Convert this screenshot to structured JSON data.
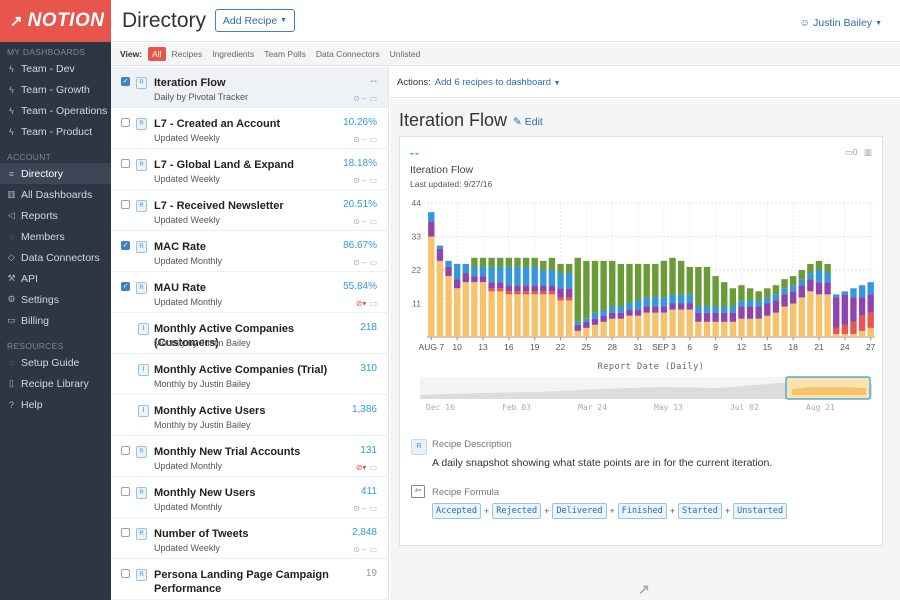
{
  "sidebar": {
    "logo_text": "NOTION",
    "my_dashboards_label": "MY DASHBOARDS",
    "dashboards": [
      {
        "label": "Team - Dev",
        "icon": "bolt-icon"
      },
      {
        "label": "Team - Growth",
        "icon": "bolt-icon"
      },
      {
        "label": "Team - Operations",
        "icon": "bolt-icon"
      },
      {
        "label": "Team - Product",
        "icon": "bolt-icon"
      }
    ],
    "account_label": "ACCOUNT",
    "account_items": [
      {
        "label": "Directory",
        "icon": "list-icon",
        "active": true
      },
      {
        "label": "All Dashboards",
        "icon": "bar-chart-icon"
      },
      {
        "label": "Reports",
        "icon": "megaphone-icon"
      },
      {
        "label": "Members",
        "icon": "chat-icon"
      },
      {
        "label": "Data Connectors",
        "icon": "tag-icon"
      },
      {
        "label": "API",
        "icon": "wrench-icon"
      },
      {
        "label": "Settings",
        "icon": "gear-icon"
      },
      {
        "label": "Billing",
        "icon": "card-icon"
      }
    ],
    "resources_label": "RESOURCES",
    "resource_items": [
      {
        "label": "Setup Guide",
        "icon": "chat-icon"
      },
      {
        "label": "Recipe Library",
        "icon": "book-icon"
      },
      {
        "label": "Help",
        "icon": "help-icon"
      }
    ]
  },
  "header": {
    "title": "Directory",
    "add_recipe_label": "Add Recipe",
    "user_name": "Justin Bailey"
  },
  "viewbar": {
    "label": "View:",
    "filters": [
      "All",
      "Recipes",
      "Ingredients",
      "Team Polls",
      "Data Connectors",
      "Unlisted"
    ],
    "active_filter": "All"
  },
  "recipes": [
    {
      "name": "Iteration Flow",
      "sub": "Daily by Pivotal Tracker",
      "value": "--",
      "checked": true,
      "selected": true,
      "type": "R",
      "has_checkbox": true,
      "alert": false
    },
    {
      "name": "L7 - Created an Account",
      "sub": "Updated Weekly",
      "value": "10.26%",
      "checked": false,
      "type": "R",
      "has_checkbox": true,
      "alert": false
    },
    {
      "name": "L7 - Global Land & Expand",
      "sub": "Updated Weekly",
      "value": "18.18%",
      "checked": false,
      "type": "R",
      "has_checkbox": true,
      "alert": false
    },
    {
      "name": "L7 - Received Newsletter",
      "sub": "Updated Weekly",
      "value": "20.51%",
      "checked": false,
      "type": "R",
      "has_checkbox": true,
      "alert": false
    },
    {
      "name": "MAC Rate",
      "sub": "Updated Monthly",
      "value": "86.67%",
      "checked": true,
      "type": "R",
      "has_checkbox": true,
      "alert": false
    },
    {
      "name": "MAU Rate",
      "sub": "Updated Monthly",
      "value": "55.84%",
      "checked": true,
      "type": "R",
      "has_checkbox": true,
      "alert": true
    },
    {
      "name": "Monthly Active Companies (Customers)",
      "sub": "Monthly by Justin Bailey",
      "value": "218",
      "checked": false,
      "type": "I",
      "has_checkbox": false,
      "alert": false
    },
    {
      "name": "Monthly Active Companies (Trial)",
      "sub": "Monthly by Justin Bailey",
      "value": "310",
      "checked": false,
      "type": "I",
      "has_checkbox": false,
      "alert": false
    },
    {
      "name": "Monthly Active Users",
      "sub": "Monthly by Justin Bailey",
      "value": "1,386",
      "checked": false,
      "type": "I",
      "has_checkbox": false,
      "alert": false
    },
    {
      "name": "Monthly New Trial Accounts",
      "sub": "Updated Monthly",
      "value": "131",
      "checked": false,
      "type": "R",
      "has_checkbox": true,
      "alert": true
    },
    {
      "name": "Monthly New Users",
      "sub": "Updated Monthly",
      "value": "411",
      "checked": false,
      "type": "R",
      "has_checkbox": true,
      "alert": false
    },
    {
      "name": "Number of Tweets",
      "sub": "Updated Weekly",
      "value": "2,848",
      "checked": false,
      "type": "R",
      "has_checkbox": true,
      "alert": false
    },
    {
      "name": "Persona Landing Page Campaign Performance",
      "sub": "",
      "value": "19",
      "checked": false,
      "type": "R",
      "has_checkbox": true,
      "alert": false,
      "grey_value": true
    }
  ],
  "actions": {
    "label": "Actions:",
    "link": "Add 6 recipes to dashboard"
  },
  "detail": {
    "title": "Iteration Flow",
    "edit_label": "Edit",
    "card": {
      "value": "--",
      "comment_count": "0",
      "title": "Iteration Flow",
      "last_updated": "Last updated: 9/27/16"
    },
    "description_label": "Recipe Description",
    "description": "A daily snapshot showing what state points are in for the current iteration.",
    "formula_label": "Recipe Formula",
    "formula_tokens": [
      "Accepted",
      "Rejected",
      "Delivered",
      "Finished",
      "Started",
      "Unstarted"
    ]
  },
  "colors": {
    "brand": "#e8554c",
    "sidebar_bg": "#2d3644",
    "link": "#2b6cb0",
    "value": "#2a9fd6",
    "series_accepted": "#f6c26b",
    "series_rejected": "#e8554c",
    "series_delivered": "#8e44ad",
    "series_finished": "#3498db",
    "series_started": "#6b9b37",
    "series_unstarted": "#e8e8e8"
  },
  "chart_data": {
    "type": "bar",
    "stacked": true,
    "xlabel": "Report Date (Daily)",
    "ylabel": "",
    "ylim": [
      0,
      44
    ],
    "y_ticks": [
      0,
      11,
      22,
      33,
      44
    ],
    "x_tick_labels": [
      "AUG 7",
      "10",
      "13",
      "16",
      "19",
      "22",
      "25",
      "28",
      "31",
      "SEP 3",
      "6",
      "9",
      "12",
      "15",
      "18",
      "21",
      "24",
      "27"
    ],
    "x_tick_days": [
      7,
      10,
      13,
      16,
      19,
      22,
      25,
      28,
      31,
      34,
      37,
      40,
      43,
      46,
      49,
      52,
      55,
      58
    ],
    "first_day": 7,
    "categories_count": 52,
    "series": [
      {
        "name": "Accepted",
        "color": "#f6c26b",
        "values": [
          33,
          25,
          20,
          16,
          18,
          18,
          18,
          15,
          15,
          14,
          14,
          14,
          14,
          14,
          14,
          12,
          12,
          2,
          3,
          4,
          5,
          6,
          6,
          7,
          7,
          8,
          8,
          8,
          9,
          9,
          9,
          5,
          5,
          5,
          5,
          5,
          6,
          6,
          6,
          7,
          8,
          10,
          11,
          13,
          15,
          14,
          14,
          1,
          1,
          1,
          2,
          3
        ]
      },
      {
        "name": "Rejected",
        "color": "#e8554c",
        "values": [
          0,
          0,
          0,
          0,
          0,
          0,
          0,
          1,
          1,
          1,
          1,
          1,
          1,
          1,
          1,
          1,
          1,
          0,
          0,
          0,
          0,
          0,
          0,
          0,
          0,
          0,
          0,
          0,
          0,
          0,
          0,
          0,
          0,
          0,
          0,
          0,
          0,
          0,
          0,
          0,
          0,
          0,
          0,
          0,
          0,
          0,
          0,
          2,
          3,
          4,
          5,
          5
        ]
      },
      {
        "name": "Delivered",
        "color": "#8e44ad",
        "values": [
          5,
          4,
          3,
          3,
          3,
          2,
          2,
          2,
          2,
          2,
          2,
          2,
          2,
          2,
          2,
          3,
          3,
          2,
          2,
          2,
          2,
          2,
          2,
          2,
          2,
          2,
          2,
          2,
          2,
          2,
          2,
          3,
          3,
          3,
          3,
          3,
          4,
          4,
          4,
          4,
          4,
          4,
          4,
          4,
          4,
          4,
          4,
          10,
          10,
          8,
          6,
          6
        ]
      },
      {
        "name": "Finished",
        "color": "#3498db",
        "values": [
          3,
          1,
          2,
          5,
          3,
          3,
          3,
          5,
          5,
          6,
          6,
          6,
          6,
          5,
          5,
          5,
          5,
          1,
          1,
          2,
          2,
          2,
          2,
          2,
          3,
          3,
          3,
          3,
          3,
          3,
          3,
          2,
          2,
          2,
          2,
          2,
          2,
          2,
          2,
          2,
          2,
          2,
          2,
          2,
          2,
          4,
          3,
          1,
          1,
          3,
          4,
          4
        ]
      },
      {
        "name": "Started",
        "color": "#6b9b37",
        "values": [
          0,
          0,
          0,
          0,
          0,
          3,
          3,
          3,
          3,
          3,
          3,
          3,
          3,
          3,
          4,
          3,
          3,
          21,
          19,
          17,
          16,
          15,
          14,
          13,
          12,
          11,
          11,
          12,
          12,
          11,
          9,
          13,
          13,
          10,
          8,
          6,
          5,
          4,
          3,
          3,
          3,
          3,
          3,
          3,
          3,
          3,
          3,
          0,
          0,
          0,
          0,
          0
        ]
      },
      {
        "name": "Unstarted",
        "color": "#e8e8e8",
        "values": [
          0,
          0,
          0,
          0,
          0,
          0,
          0,
          0,
          0,
          0,
          0,
          0,
          0,
          0,
          0,
          0,
          0,
          0,
          0,
          0,
          0,
          0,
          0,
          0,
          0,
          0,
          0,
          0,
          0,
          0,
          0,
          0,
          0,
          0,
          0,
          0,
          0,
          0,
          0,
          0,
          0,
          0,
          0,
          0,
          0,
          0,
          0,
          0,
          0,
          0,
          0,
          0
        ]
      }
    ],
    "navigator_labels": [
      "Dec 16",
      "Feb 03",
      "Mar 24",
      "May 13",
      "Jul 02",
      "Aug 21"
    ]
  }
}
